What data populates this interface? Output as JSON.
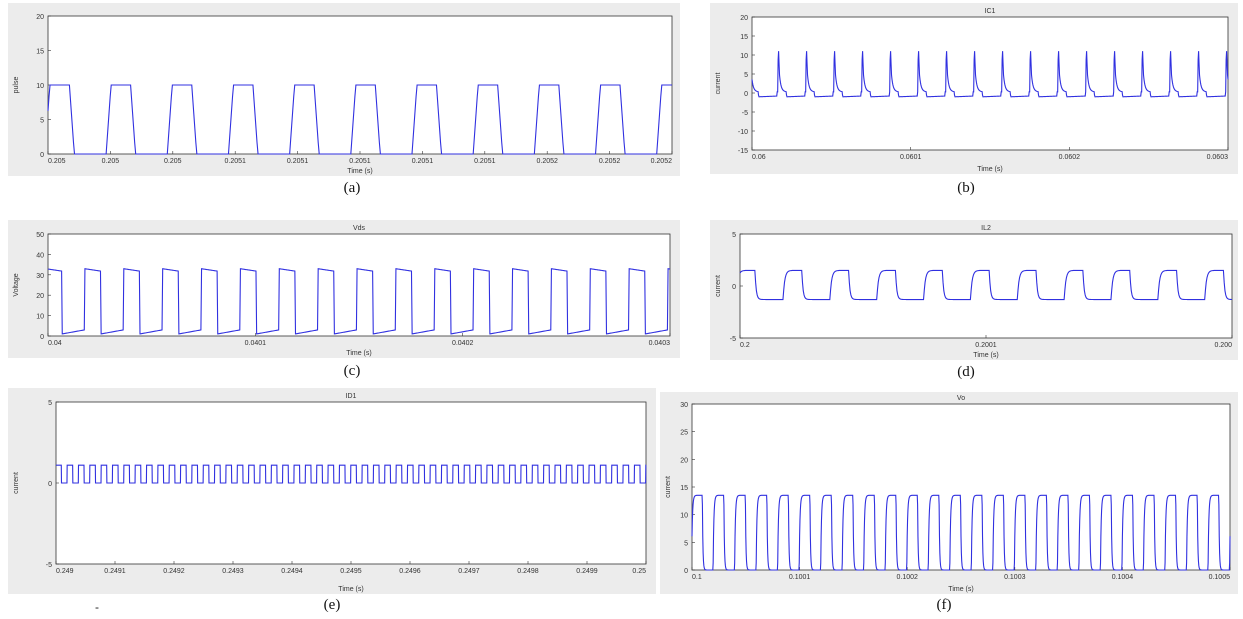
{
  "style": {
    "line_color": "#3030e0",
    "panel_bg": "#ececec",
    "axes_bg": "#ffffff"
  },
  "chart_data": [
    {
      "id": "a",
      "caption": "(a)",
      "type": "line",
      "title": "",
      "xlabel": "Time (s)",
      "ylabel": "pulse",
      "ylim": [
        0,
        20
      ],
      "yticks": [
        "0",
        "5",
        "10",
        "15",
        "20"
      ],
      "xticks": [
        "0.205",
        "0.205",
        "0.205",
        "0.2051",
        "0.2051",
        "0.2051",
        "0.2051",
        "0.2051",
        "0.2052",
        "0.2052",
        "0.2052"
      ],
      "waveform": {
        "kind": "trapezoid",
        "cycles": 10.2,
        "low": 0,
        "high": 10,
        "phase": 0.05
      }
    },
    {
      "id": "b",
      "caption": "(b)",
      "type": "line",
      "title": "IC1",
      "xlabel": "Time (s)",
      "ylabel": "current",
      "ylim": [
        -15,
        20
      ],
      "yticks": [
        "-15",
        "-10",
        "-5",
        "0",
        "5",
        "10",
        "15",
        "20"
      ],
      "xticks": [
        "0.06",
        "0.0601",
        "0.0602",
        "0.0603"
      ],
      "waveform": {
        "kind": "spike",
        "cycles": 17,
        "low": -1,
        "high": 13,
        "base": 0.3,
        "phase": 0.08
      }
    },
    {
      "id": "c",
      "caption": "(c)",
      "type": "line",
      "title": "Vds",
      "xlabel": "Time (s)",
      "ylabel": "Voltage",
      "ylim": [
        0,
        50
      ],
      "yticks": [
        "0",
        "10",
        "20",
        "30",
        "40",
        "50"
      ],
      "xticks": [
        "0.04",
        "0.0401",
        "0.0402",
        "0.0403"
      ],
      "waveform": {
        "kind": "pulse",
        "cycles": 16,
        "low": 1,
        "high": 33,
        "duty": 0.42,
        "phase": 0.06
      }
    },
    {
      "id": "d",
      "caption": "(d)",
      "type": "line",
      "title": "IL2",
      "xlabel": "Time (s)",
      "ylabel": "current",
      "ylim": [
        -5,
        5
      ],
      "yticks": [
        "-5",
        "0",
        "5"
      ],
      "xticks": [
        "0.2",
        "0.2001",
        "0.200"
      ],
      "waveform": {
        "kind": "rc",
        "cycles": 10.5,
        "low": -1.3,
        "high": 1.5,
        "duty": 0.4,
        "phase": 0.08
      }
    },
    {
      "id": "e",
      "caption": "(e)",
      "type": "line",
      "title": "ID1",
      "xlabel": "Time (s)",
      "ylabel": "current",
      "ylim": [
        -5,
        5
      ],
      "yticks": [
        "-5",
        "0",
        "5"
      ],
      "xticks": [
        "0.249",
        "0.2491",
        "0.2492",
        "0.2493",
        "0.2494",
        "0.2495",
        "0.2496",
        "0.2497",
        "0.2498",
        "0.2499",
        "0.25"
      ],
      "waveform": {
        "kind": "square",
        "cycles": 52,
        "low": 0,
        "high": 1.1,
        "duty": 0.5,
        "phase": 0.02
      }
    },
    {
      "id": "f",
      "caption": "(f)",
      "type": "line",
      "title": "Vo",
      "xlabel": "Time (s)",
      "ylabel": "current",
      "ylim": [
        0,
        30
      ],
      "yticks": [
        "0",
        "5",
        "10",
        "15",
        "20",
        "25",
        "30"
      ],
      "xticks": [
        "0.1",
        "0.1001",
        "0.1002",
        "0.1003",
        "0.1004",
        "0.1005"
      ],
      "waveform": {
        "kind": "rc",
        "cycles": 25,
        "low": 0,
        "high": 13.5,
        "duty": 0.5,
        "phase": 0.02
      }
    }
  ]
}
